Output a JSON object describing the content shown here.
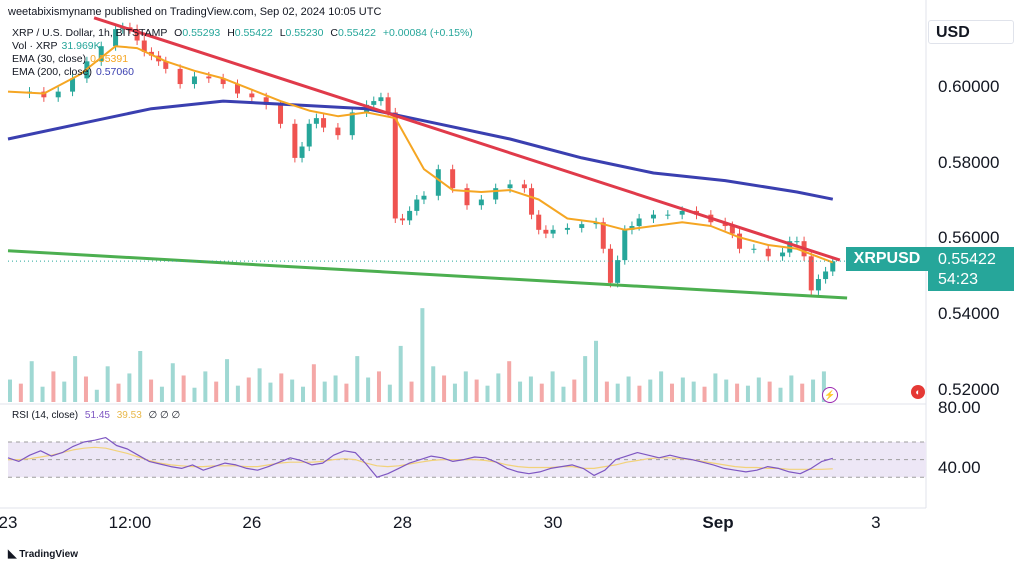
{
  "header": {
    "publisher_line": "weetabixismyname published on TradingView.com, Sep 02, 2024 10:05 UTC",
    "symbol_line": "XRP / U.S. Dollar, 1h, BITSTAMP",
    "ohlc": {
      "o_label": "O",
      "o": "0.55293",
      "h_label": "H",
      "h": "0.55422",
      "l_label": "L",
      "l": "0.55230",
      "c_label": "C",
      "c": "0.55422",
      "change": "+0.00084 (+0.15%)"
    }
  },
  "indicators": {
    "vol": {
      "label": "Vol · XRP",
      "value": "31.969K"
    },
    "ema30": {
      "label": "EMA (30, close)",
      "value": "0.55391"
    },
    "ema200": {
      "label": "EMA (200, close)",
      "value": "0.57060"
    }
  },
  "currency": "USD",
  "last_price": {
    "symbol": "XRPUSD",
    "price": "0.55422",
    "countdown": "54:23"
  },
  "rsi": {
    "label": "RSI (14, close)",
    "value": "51.45",
    "ma_value": "39.53",
    "extra": "∅ ∅ ∅",
    "ticks": [
      "80.00",
      "40.00"
    ]
  },
  "footer": {
    "brand": "TradingView"
  },
  "colors": {
    "up": "#26a69a",
    "down": "#ef5350",
    "ema30": "#f5a623",
    "ema200": "#3a3fb0",
    "resistance": "#e03a4a",
    "support": "#4caf50",
    "rsi_line": "#7e57c2",
    "rsi_ma": "#f2d27a"
  },
  "icons": {
    "lightning": "lightning-icon",
    "flag": "flag-icon",
    "tv_logo": "tradingview-logo-icon"
  },
  "chart_data": {
    "type": "line",
    "instrument": "XRP / U.S. Dollar",
    "timeframe": "1h",
    "y_ticks": [
      "0.60000",
      "0.58000",
      "0.56000",
      "0.54000",
      "0.52000"
    ],
    "x_ticks": [
      "23",
      "12:00",
      "26",
      "28",
      "30",
      "Sep",
      "3"
    ],
    "ylim": [
      0.5165,
      0.6195
    ],
    "xlim": [
      0,
      128
    ],
    "x_tick_positions": [
      0,
      17,
      34,
      55,
      76,
      99,
      121
    ],
    "price_path": {
      "x": [
        0,
        3,
        5,
        7,
        9,
        11,
        13,
        15,
        16,
        17,
        18,
        19,
        20,
        21,
        22,
        24,
        26,
        28,
        30,
        32,
        34,
        36,
        38,
        40,
        41,
        42,
        43,
        44,
        46,
        48,
        50,
        51,
        52,
        53,
        54,
        55,
        56,
        57,
        58,
        60,
        62,
        64,
        66,
        68,
        70,
        72,
        73,
        74,
        75,
        76,
        78,
        80,
        82,
        83,
        84,
        85,
        86,
        87,
        88,
        90,
        92,
        94,
        96,
        98,
        100,
        101,
        102,
        104,
        106,
        108,
        109,
        110,
        111,
        112,
        113,
        114,
        115
      ],
      "y": [
        0.5985,
        0.599,
        0.5975,
        0.599,
        0.6025,
        0.607,
        0.611,
        0.6155,
        0.616,
        0.6155,
        0.6125,
        0.6095,
        0.6085,
        0.607,
        0.605,
        0.601,
        0.603,
        0.6025,
        0.601,
        0.5985,
        0.5975,
        0.5955,
        0.5905,
        0.5815,
        0.5845,
        0.5905,
        0.592,
        0.5895,
        0.5875,
        0.5935,
        0.5955,
        0.5965,
        0.5975,
        0.5935,
        0.5655,
        0.565,
        0.5675,
        0.5705,
        0.5715,
        0.5785,
        0.5735,
        0.569,
        0.5705,
        0.5735,
        0.5745,
        0.5735,
        0.5665,
        0.5625,
        0.5615,
        0.5625,
        0.563,
        0.564,
        0.5645,
        0.5575,
        0.5485,
        0.5545,
        0.5625,
        0.5635,
        0.5655,
        0.5665,
        0.5665,
        0.5675,
        0.5665,
        0.5645,
        0.5635,
        0.5615,
        0.5575,
        0.5575,
        0.5555,
        0.5565,
        0.5595,
        0.5595,
        0.5555,
        0.5465,
        0.5495,
        0.5515,
        0.5542
      ]
    },
    "ema30_path": {
      "x": [
        0,
        5,
        10,
        15,
        18,
        22,
        26,
        30,
        34,
        38,
        42,
        46,
        50,
        54,
        58,
        62,
        66,
        70,
        74,
        78,
        82,
        86,
        90,
        94,
        98,
        102,
        106,
        110,
        115
      ],
      "y": [
        0.599,
        0.5985,
        0.6035,
        0.611,
        0.6105,
        0.607,
        0.6045,
        0.6025,
        0.5995,
        0.5965,
        0.594,
        0.5925,
        0.5935,
        0.592,
        0.5785,
        0.573,
        0.5725,
        0.573,
        0.5705,
        0.5655,
        0.5645,
        0.5625,
        0.5635,
        0.5645,
        0.5635,
        0.5605,
        0.5585,
        0.5575,
        0.5539
      ]
    },
    "ema200_path": {
      "x": [
        0,
        10,
        20,
        30,
        40,
        50,
        60,
        70,
        80,
        90,
        100,
        110,
        115
      ],
      "y": [
        0.5865,
        0.5905,
        0.5945,
        0.5965,
        0.5955,
        0.5945,
        0.5905,
        0.5865,
        0.5815,
        0.5775,
        0.5755,
        0.5725,
        0.5706
      ]
    },
    "resistance_line": {
      "x": [
        12,
        116
      ],
      "y": [
        0.6185,
        0.5545
      ]
    },
    "support_line": {
      "x": [
        0,
        117
      ],
      "y": [
        0.557,
        0.5445
      ]
    },
    "volume_ylim": [
      0,
      100
    ],
    "volume": [
      22,
      18,
      40,
      15,
      30,
      20,
      45,
      25,
      12,
      35,
      18,
      28,
      50,
      22,
      15,
      38,
      26,
      14,
      30,
      20,
      42,
      16,
      24,
      33,
      19,
      28,
      22,
      15,
      37,
      20,
      26,
      18,
      45,
      24,
      30,
      17,
      55,
      20,
      92,
      35,
      26,
      18,
      30,
      22,
      16,
      28,
      40,
      20,
      25,
      18,
      30,
      15,
      22,
      45,
      60,
      20,
      18,
      25,
      16,
      22,
      30,
      18,
      24,
      20,
      15,
      28,
      22,
      18,
      16,
      24,
      20,
      14,
      26,
      18,
      22,
      30
    ],
    "rsi_ylim": [
      20,
      95
    ],
    "rsi_bands": [
      70,
      30
    ],
    "rsi_midline": 50,
    "rsi": [
      52,
      48,
      55,
      60,
      54,
      58,
      65,
      70,
      72,
      75,
      66,
      62,
      55,
      48,
      45,
      42,
      40,
      44,
      38,
      42,
      46,
      44,
      40,
      38,
      42,
      47,
      52,
      49,
      44,
      46,
      55,
      60,
      58,
      45,
      30,
      34,
      40,
      46,
      50,
      54,
      52,
      48,
      50,
      53,
      52,
      47,
      40,
      36,
      34,
      36,
      40,
      42,
      44,
      40,
      32,
      38,
      50,
      54,
      58,
      55,
      52,
      55,
      52,
      50,
      47,
      44,
      40,
      38,
      36,
      38,
      42,
      40,
      36,
      34,
      40,
      48,
      51.45
    ],
    "rsi_ma": [
      50,
      50,
      51,
      53,
      55,
      58,
      61,
      63,
      64,
      63,
      60,
      57,
      53,
      49,
      46,
      44,
      43,
      42,
      42,
      43,
      43,
      43,
      42,
      42,
      44,
      46,
      47,
      47,
      47,
      48,
      50,
      51,
      50,
      46,
      43,
      42,
      43,
      45,
      47,
      49,
      50,
      50,
      50,
      50,
      49,
      47,
      44,
      42,
      41,
      41,
      41,
      42,
      42,
      40,
      40,
      42,
      44,
      47,
      49,
      51,
      52,
      52,
      51,
      50,
      48,
      46,
      44,
      42,
      41,
      41,
      40,
      40,
      39,
      39,
      39,
      39,
      39.53
    ]
  }
}
